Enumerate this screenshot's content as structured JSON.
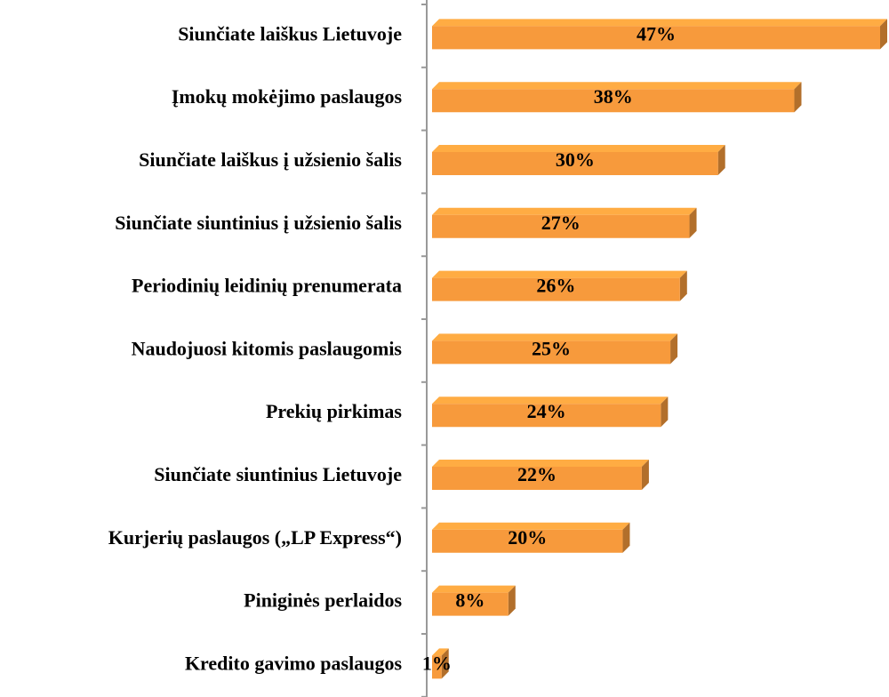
{
  "chart_data": {
    "type": "bar",
    "orientation": "horizontal",
    "categories": [
      "Siunčiate laiškus Lietuvoje",
      "Įmokų mokėjimo paslaugos",
      "Siunčiate laiškus į užsienio šalis",
      "Siunčiate siuntinius į užsienio šalis",
      "Periodinių leidinių prenumerata",
      "Naudojuosi kitomis paslaugomis",
      "Prekių pirkimas",
      "Siunčiate siuntinius Lietuvoje",
      "Kurjerių paslaugos („LP Express“)",
      "Piniginės perlaidos",
      "Kredito gavimo paslaugos"
    ],
    "values": [
      47,
      38,
      30,
      27,
      26,
      25,
      24,
      22,
      20,
      8,
      1
    ],
    "value_labels": [
      "47%",
      "38%",
      "30%",
      "27%",
      "26%",
      "25%",
      "24%",
      "22%",
      "20%",
      "8%",
      "1%"
    ],
    "color": "#f79a3c",
    "xlim": [
      0,
      47
    ]
  }
}
